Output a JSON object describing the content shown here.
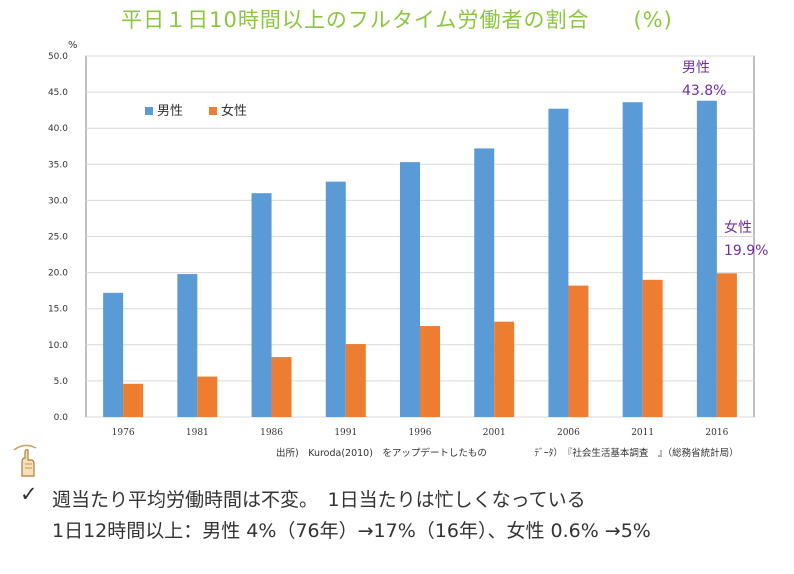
{
  "title": "平日１日10時間以上のフルタイム労働者の割合　　(%)",
  "source_note": "出所)　Kuroda(2010)　をアップデートしたもの　　　　　ﾃﾞｰﾀ）　『社会生活基本調査　』（総務省統計局）",
  "bullet_line": "週当たり平均労働時間は不変。　1日当たりは忙しくなっている",
  "detail_line": "1日12時間以上：男性 4%（76年）→17%（16年）、女性 0.6% →5%",
  "colors": {
    "male": "#5b9bd5",
    "female": "#ed7d31",
    "title": "#8cc63f",
    "annotation": "#7030a0"
  },
  "chart_data": {
    "type": "bar",
    "categories": [
      "1976",
      "1981",
      "1986",
      "1991",
      "1996",
      "2001",
      "2006",
      "2011",
      "2016"
    ],
    "series": [
      {
        "name": "男性",
        "values": [
          17.2,
          19.8,
          31.0,
          32.6,
          35.3,
          37.2,
          42.7,
          43.6,
          43.8
        ]
      },
      {
        "name": "女性",
        "values": [
          4.6,
          5.6,
          8.3,
          10.1,
          12.6,
          13.2,
          18.2,
          19.0,
          19.9
        ]
      }
    ],
    "yunit": "%",
    "ylim": [
      0,
      50
    ],
    "yticks": [
      "0.0",
      "5.0",
      "10.0",
      "15.0",
      "20.0",
      "25.0",
      "30.0",
      "35.0",
      "40.0",
      "45.0",
      "50.0"
    ],
    "grid": true,
    "legend_position": "top-left",
    "annotations": [
      {
        "series": "男性",
        "label": "男性",
        "value": "43.8%"
      },
      {
        "series": "女性",
        "label": "女性",
        "value": "19.9%"
      }
    ]
  }
}
